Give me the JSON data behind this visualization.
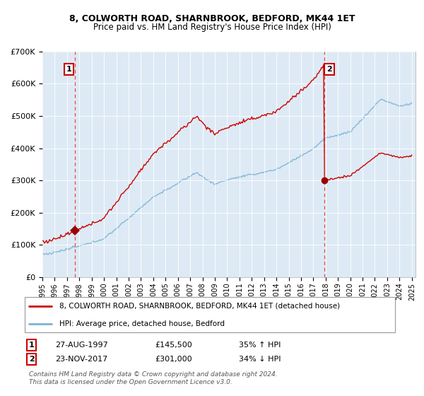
{
  "title": "8, COLWORTH ROAD, SHARNBROOK, BEDFORD, MK44 1ET",
  "subtitle": "Price paid vs. HM Land Registry's House Price Index (HPI)",
  "legend_line1": "8, COLWORTH ROAD, SHARNBROOK, BEDFORD, MK44 1ET (detached house)",
  "legend_line2": "HPI: Average price, detached house, Bedford",
  "annotation1_date": "27-AUG-1997",
  "annotation1_price": "£145,500",
  "annotation1_hpi": "35% ↑ HPI",
  "annotation2_date": "23-NOV-2017",
  "annotation2_price": "£301,000",
  "annotation2_hpi": "34% ↓ HPI",
  "footer": "Contains HM Land Registry data © Crown copyright and database right 2024.\nThis data is licensed under the Open Government Licence v3.0.",
  "hpi_color": "#7ab3d4",
  "price_color": "#cc0000",
  "marker_color": "#990000",
  "dashed_color": "#ee3333",
  "plot_bg": "#ddeaf5",
  "ylim": [
    0,
    700000
  ],
  "yticks": [
    0,
    100000,
    200000,
    300000,
    400000,
    500000,
    600000,
    700000
  ],
  "sale1_year": 1997.65,
  "sale1_price": 145500,
  "sale2_year": 2017.9,
  "sale2_price": 301000
}
